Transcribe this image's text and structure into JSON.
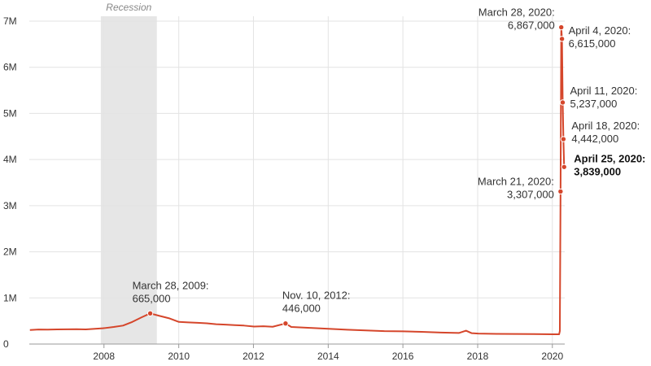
{
  "chart_data": {
    "type": "line",
    "y_axis": {
      "range": [
        0,
        7000000
      ],
      "ticks": [
        {
          "value": 0,
          "label": "0"
        },
        {
          "value": 1000000,
          "label": "1M"
        },
        {
          "value": 2000000,
          "label": "2M"
        },
        {
          "value": 3000000,
          "label": "3M"
        },
        {
          "value": 4000000,
          "label": "4M"
        },
        {
          "value": 5000000,
          "label": "5M"
        },
        {
          "value": 6000000,
          "label": "6M"
        },
        {
          "value": 7000000,
          "label": "7M"
        }
      ]
    },
    "x_axis": {
      "range": [
        "2006-01-01",
        "2020-05-01"
      ],
      "ticks": [
        {
          "value": "2008-01-01",
          "label": "2008"
        },
        {
          "value": "2010-01-01",
          "label": "2010"
        },
        {
          "value": "2012-01-01",
          "label": "2012"
        },
        {
          "value": "2014-01-01",
          "label": "2014"
        },
        {
          "value": "2016-01-01",
          "label": "2016"
        },
        {
          "value": "2018-01-01",
          "label": "2018"
        },
        {
          "value": "2020-01-01",
          "label": "2020"
        }
      ]
    },
    "grid": true,
    "recession": {
      "label": "Recession",
      "start": "2007-12-01",
      "end": "2009-06-01",
      "color": "#e6e6e6"
    },
    "line_color": "#d5462b",
    "series": [
      {
        "points": [
          [
            "2006-01-07",
            305000
          ],
          [
            "2006-04-01",
            315000
          ],
          [
            "2006-07-01",
            312000
          ],
          [
            "2006-10-01",
            318000
          ],
          [
            "2007-01-06",
            320000
          ],
          [
            "2007-04-07",
            322000
          ],
          [
            "2007-07-07",
            318000
          ],
          [
            "2007-10-06",
            330000
          ],
          [
            "2008-01-05",
            345000
          ],
          [
            "2008-04-05",
            370000
          ],
          [
            "2008-07-05",
            400000
          ],
          [
            "2008-10-04",
            480000
          ],
          [
            "2009-01-03",
            580000
          ],
          [
            "2009-03-28",
            665000
          ],
          [
            "2009-06-27",
            610000
          ],
          [
            "2009-09-26",
            560000
          ],
          [
            "2010-01-02",
            480000
          ],
          [
            "2010-04-03",
            470000
          ],
          [
            "2010-07-03",
            460000
          ],
          [
            "2010-10-02",
            450000
          ],
          [
            "2011-01-01",
            430000
          ],
          [
            "2011-04-02",
            420000
          ],
          [
            "2011-07-02",
            410000
          ],
          [
            "2011-10-01",
            400000
          ],
          [
            "2012-01-07",
            380000
          ],
          [
            "2012-04-07",
            385000
          ],
          [
            "2012-07-07",
            375000
          ],
          [
            "2012-11-10",
            446000
          ],
          [
            "2013-01-05",
            370000
          ],
          [
            "2013-07-06",
            350000
          ],
          [
            "2014-01-04",
            330000
          ],
          [
            "2014-07-05",
            310000
          ],
          [
            "2015-01-03",
            295000
          ],
          [
            "2015-07-04",
            280000
          ],
          [
            "2016-01-02",
            275000
          ],
          [
            "2016-07-02",
            265000
          ],
          [
            "2017-01-07",
            250000
          ],
          [
            "2017-07-01",
            240000
          ],
          [
            "2017-09-09",
            290000
          ],
          [
            "2017-11-04",
            235000
          ],
          [
            "2018-01-06",
            228000
          ],
          [
            "2018-07-07",
            220000
          ],
          [
            "2019-01-05",
            218000
          ],
          [
            "2019-07-06",
            215000
          ],
          [
            "2020-01-04",
            212000
          ],
          [
            "2020-03-07",
            211000
          ],
          [
            "2020-03-14",
            282000
          ],
          [
            "2020-03-21",
            3307000
          ],
          [
            "2020-03-28",
            6867000
          ],
          [
            "2020-04-04",
            6615000
          ],
          [
            "2020-04-11",
            5237000
          ],
          [
            "2020-04-18",
            4442000
          ],
          [
            "2020-04-25",
            3839000
          ]
        ]
      }
    ],
    "annotations": [
      {
        "date": "2009-03-28",
        "value": 665000,
        "line1": "March 28, 2009:",
        "line2": "665,000",
        "anchor": "left",
        "bold": false
      },
      {
        "date": "2012-11-10",
        "value": 446000,
        "line1": "Nov. 10, 2012:",
        "line2": "446,000",
        "anchor": "left",
        "bold": false
      },
      {
        "date": "2020-03-21",
        "value": 3307000,
        "line1": "March 21, 2020:",
        "line2": "3,307,000",
        "anchor": "right",
        "bold": false
      },
      {
        "date": "2020-03-28",
        "value": 6867000,
        "line1": "March 28, 2020:",
        "line2": "6,867,000",
        "anchor": "right",
        "bold": false
      },
      {
        "date": "2020-04-04",
        "value": 6615000,
        "line1": "April 4, 2020:",
        "line2": "6,615,000",
        "anchor": "left",
        "bold": false
      },
      {
        "date": "2020-04-11",
        "value": 5237000,
        "line1": "April 11, 2020:",
        "line2": "5,237,000",
        "anchor": "left",
        "bold": false
      },
      {
        "date": "2020-04-18",
        "value": 4442000,
        "line1": "April 18, 2020:",
        "line2": "4,442,000",
        "anchor": "left",
        "bold": false
      },
      {
        "date": "2020-04-25",
        "value": 3839000,
        "line1": "April 25, 2020:",
        "line2": "3,839,000",
        "anchor": "left",
        "bold": true
      }
    ]
  }
}
